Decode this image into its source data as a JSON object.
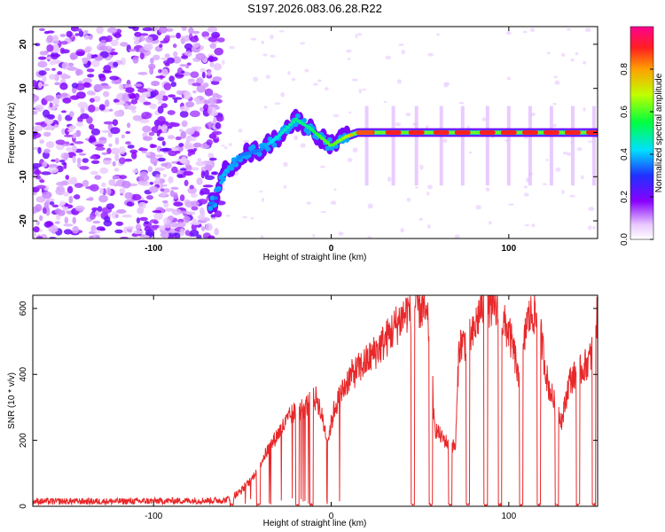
{
  "chart_data": [
    {
      "type": "heatmap",
      "title": "S197.2026.083.06.28.R22",
      "xlabel": "Height of straight line (km)",
      "ylabel": "Frequency (Hz)",
      "xlim": [
        -168,
        150
      ],
      "ylim": [
        -24,
        24
      ],
      "x_ticks": [
        "-100",
        "0",
        "100"
      ],
      "x_tick_values": [
        -100,
        0,
        100
      ],
      "y_ticks": [
        "20",
        "10",
        "0",
        "-10",
        "-20"
      ],
      "y_tick_values": [
        20,
        10,
        0,
        -10,
        -20
      ],
      "colorbar": {
        "label": "Normalized spectral amplitude",
        "range": [
          0,
          1
        ],
        "ticks": [
          "0.0",
          "0.2",
          "0.4",
          "0.6",
          "0.8"
        ],
        "tick_values": [
          0.0,
          0.2,
          0.4,
          0.6,
          0.8
        ]
      },
      "ridge": {
        "description_points": [
          {
            "x": -66,
            "y": -16,
            "amp": 0.35
          },
          {
            "x": -60,
            "y": -9,
            "amp": 0.4
          },
          {
            "x": -50,
            "y": -5,
            "amp": 0.35
          },
          {
            "x": -40,
            "y": -4,
            "amp": 0.35
          },
          {
            "x": -30,
            "y": -1,
            "amp": 0.45
          },
          {
            "x": -20,
            "y": 3,
            "amp": 0.5
          },
          {
            "x": -12,
            "y": 1,
            "amp": 0.5
          },
          {
            "x": -6,
            "y": -1,
            "amp": 0.6
          },
          {
            "x": 0,
            "y": -3,
            "amp": 0.6
          },
          {
            "x": 8,
            "y": -1,
            "amp": 0.65
          },
          {
            "x": 15,
            "y": 0,
            "amp": 0.9
          },
          {
            "x": 150,
            "y": 0,
            "amp": 0.9
          }
        ],
        "bright_segment_centers": [
          20,
          35,
          48,
          62,
          74,
          88,
          100,
          112,
          124,
          136,
          148
        ],
        "noise_region_x": [
          -168,
          -62
        ]
      }
    },
    {
      "type": "line",
      "title": "",
      "xlabel": "Height of straight line (km)",
      "ylabel": "SNR (10 * v/v)",
      "xlim": [
        -168,
        150
      ],
      "ylim": [
        0,
        640
      ],
      "x_ticks": [
        "-100",
        "0",
        "100"
      ],
      "x_tick_values": [
        -100,
        0,
        100
      ],
      "y_ticks": [
        "0",
        "200",
        "400",
        "600"
      ],
      "y_tick_values": [
        0,
        200,
        400,
        600
      ],
      "series": [
        {
          "name": "SNR",
          "color": "#e8282a",
          "anchors": [
            [
              -168,
              15
            ],
            [
              -120,
              15
            ],
            [
              -60,
              18
            ],
            [
              -52,
              40
            ],
            [
              -45,
              80
            ],
            [
              -38,
              150
            ],
            [
              -30,
              220
            ],
            [
              -22,
              280
            ],
            [
              -15,
              300
            ],
            [
              -8,
              330
            ],
            [
              -2,
              200
            ],
            [
              2,
              300
            ],
            [
              10,
              390
            ],
            [
              20,
              440
            ],
            [
              30,
              500
            ],
            [
              38,
              560
            ],
            [
              44,
              600
            ],
            [
              48,
              610
            ],
            [
              52,
              600
            ],
            [
              56,
              520
            ],
            [
              58,
              240
            ],
            [
              62,
              210
            ],
            [
              66,
              190
            ],
            [
              70,
              180
            ],
            [
              72,
              490
            ],
            [
              76,
              500
            ],
            [
              80,
              520
            ],
            [
              84,
              600
            ],
            [
              88,
              620
            ],
            [
              92,
              600
            ],
            [
              96,
              560
            ],
            [
              100,
              530
            ],
            [
              104,
              440
            ],
            [
              106,
              350
            ],
            [
              110,
              560
            ],
            [
              114,
              590
            ],
            [
              118,
              520
            ],
            [
              122,
              370
            ],
            [
              126,
              310
            ],
            [
              130,
              260
            ],
            [
              134,
              380
            ],
            [
              138,
              400
            ],
            [
              142,
              420
            ],
            [
              146,
              450
            ],
            [
              150,
              580
            ]
          ],
          "dropouts": [
            [
              -57,
              -55
            ],
            [
              -42,
              -40
            ],
            [
              -20,
              -18
            ],
            [
              -12,
              -10
            ],
            [
              45,
              47
            ],
            [
              55,
              57
            ],
            [
              66,
              68
            ],
            [
              76,
              78
            ],
            [
              86,
              88
            ],
            [
              94,
              96
            ],
            [
              106,
              108
            ],
            [
              116,
              118
            ],
            [
              126,
              128
            ],
            [
              138,
              140
            ],
            [
              147,
              149
            ]
          ]
        }
      ]
    },
    {
      "type": "note",
      "text_source": "render"
    }
  ],
  "colors": {
    "line": "#e8282a",
    "axis": "#000000",
    "background": "#ffffff"
  }
}
